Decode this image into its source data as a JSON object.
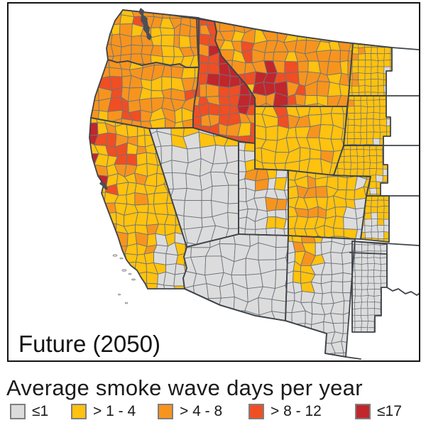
{
  "map_panel": {
    "label": "Future (2050)"
  },
  "legend": {
    "title": "Average smoke wave days per year",
    "swatch_border_color": "#7F7F7F",
    "items": [
      {
        "label": "≤1",
        "color": "#DCDCDC"
      },
      {
        "label": "> 1 - 4",
        "color": "#FFC20E"
      },
      {
        "label": "> 4 - 8",
        "color": "#F7941E"
      },
      {
        "label": "> 8 - 12",
        "color": "#F04E23"
      },
      {
        "label": "≤17",
        "color": "#C0262C"
      }
    ]
  },
  "chart_data": {
    "type": "choropleth_map",
    "title": "Average smoke wave days per year",
    "scenario_label": "Future (2050)",
    "geography": "Western United States, county level",
    "categories": [
      {
        "range": "≤1",
        "color": "#DCDCDC"
      },
      {
        "range": "> 1 - 4",
        "color": "#FFC20E"
      },
      {
        "range": "> 4 - 8",
        "color": "#F7941E"
      },
      {
        "range": "> 8 - 12",
        "color": "#F04E23"
      },
      {
        "range": "≤17",
        "color": "#C0262C"
      }
    ],
    "regional_pattern": [
      {
        "area": "Washington",
        "dominant": "> 4 - 8",
        "notes": "yellow band through center and northwest coast, > 8 - 12 patches in Cascades"
      },
      {
        "area": "Oregon",
        "dominant": "> 4 - 8",
        "notes": "> 8 - 12 in west-central counties, > 1 - 4 patches in east and center"
      },
      {
        "area": "Northwest California coast",
        "dominant": "≤17"
      },
      {
        "area": "Northern California interior",
        "dominant": "> 4 - 8",
        "notes": "with > 8 - 12 cluster"
      },
      {
        "area": "Central and Southern California",
        "dominant": "> 1 - 4",
        "notes": "≤1 in southeastern desert counties"
      },
      {
        "area": "Idaho",
        "dominant": "> 8 - 12",
        "notes": "≤17 cluster across central Idaho"
      },
      {
        "area": "Western Montana",
        "dominant": "> 8 - 12",
        "notes": "≤17 cluster adjoining central Idaho"
      },
      {
        "area": "Eastern Montana",
        "dominant": "> 4 - 8",
        "notes": "> 1 - 4 patches toward Canada and the Dakotas"
      },
      {
        "area": "Wyoming",
        "dominant": "> 1 - 4",
        "notes": "> 8 - 12 around the Yellowstone corner"
      },
      {
        "area": "Nevada",
        "dominant": "≤1",
        "notes": "> 1 - 4 strip along the northern border"
      },
      {
        "area": "Utah",
        "dominant": "≤1",
        "notes": "> 1 - 4 and > 4 - 8 in the north and east"
      },
      {
        "area": "Colorado",
        "dominant": "> 1 - 4",
        "notes": "> 4 - 8 cluster in center-west, ≤1 on the eastern plains"
      },
      {
        "area": "Arizona",
        "dominant": "≤1"
      },
      {
        "area": "New Mexico",
        "dominant": "≤1",
        "notes": "> 1 - 4 patches in the north"
      },
      {
        "area": "Western Dakotas, Nebraska and Kansas strip",
        "dominant": "> 1 - 4",
        "notes": "scattered > 4 - 8 near Montana and ≤1 cells at the study-area edge"
      },
      {
        "area": "Oklahoma and Texas panhandles",
        "dominant": "≤1"
      }
    ]
  },
  "map_style": {
    "county_line_color": "#6E747B",
    "state_line_color": "#3F444A",
    "frame_color": "#131313",
    "background": "#FFFFFF",
    "water_color": "#4B5056"
  }
}
